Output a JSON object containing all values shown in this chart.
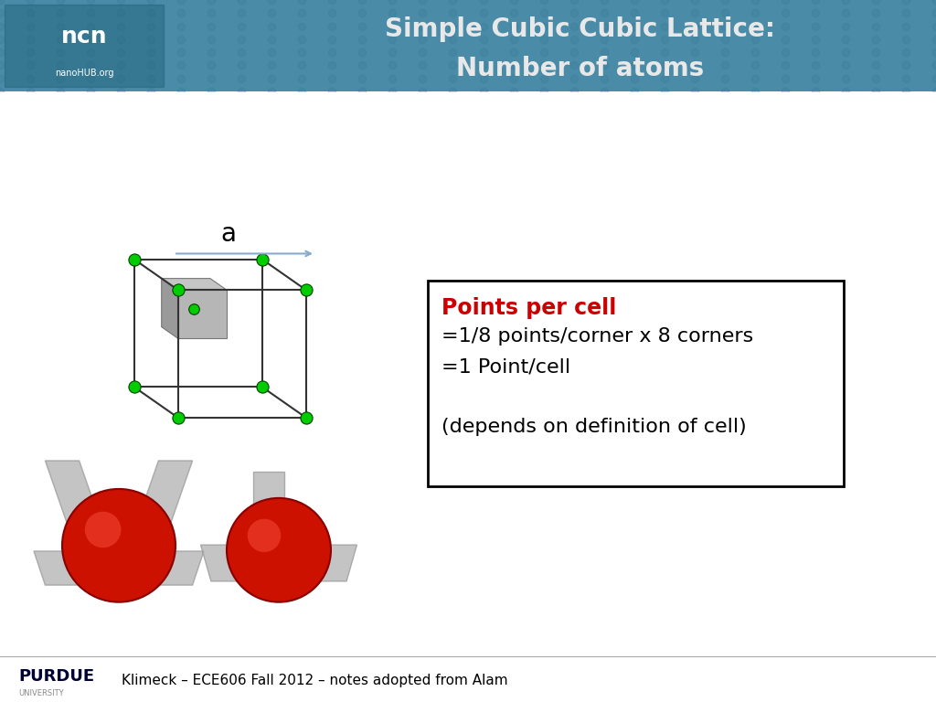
{
  "title_line1": "Simple Cubic Cubic Lattice:",
  "title_line2": "Number of atoms",
  "header_bg_color": "#4a8ca8",
  "header_text_color": "#e8e8e8",
  "bg_color": "#ffffff",
  "box_text_line1_color": "#cc0000",
  "box_text_line1": "Points per cell",
  "box_text_lines": [
    "=1/8 points/corner x 8 corners",
    "=1 Point/cell",
    "",
    "(depends on definition of cell)"
  ],
  "box_text_color": "#000000",
  "footer_text": "Klimeck – ECE606 Fall 2012 – notes adopted from Alam",
  "footer_text_color": "#000000",
  "atom_color": "#00cc00",
  "cube_color": "#333333",
  "arrow_color": "#88aacc",
  "label_a": "a",
  "purdue_text": "PURDUE",
  "university_text": "UNIVERSITY"
}
